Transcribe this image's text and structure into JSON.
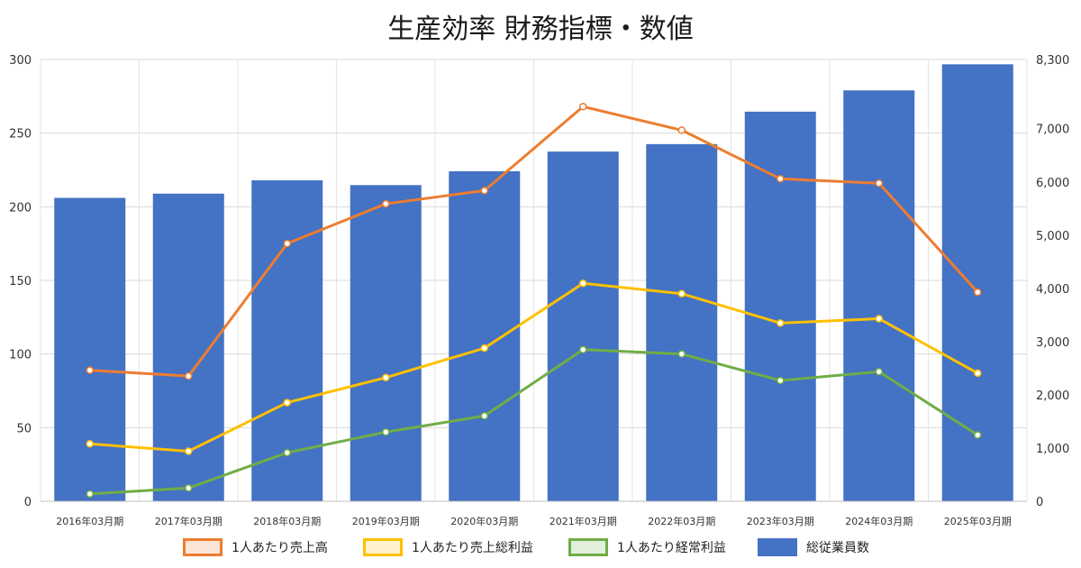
{
  "chart_data": {
    "type": "bar",
    "title": "生産効率 財務指標・数値",
    "categories": [
      "2016年03月期",
      "2017年03月期",
      "2018年03月期",
      "2019年03月期",
      "2020年03月期",
      "2021年03月期",
      "2022年03月期",
      "2023年03月期",
      "2024年03月期",
      "2025年03月期"
    ],
    "y_left": {
      "lim": [
        0,
        300
      ],
      "ticks": [
        "0",
        "50",
        "100",
        "150",
        "200",
        "250",
        "300"
      ]
    },
    "y_right": {
      "lim": [
        0,
        8300
      ],
      "ticks": [
        "0",
        "1,000",
        "2,000",
        "3,000",
        "4,000",
        "5,000",
        "6,000",
        "7,000",
        "8,300"
      ]
    },
    "grid": true,
    "legend_position": "bottom",
    "bar_series": {
      "name": "総従業員数",
      "axis": "right",
      "color": "#4472c4",
      "values": [
        5700,
        5780,
        6030,
        5940,
        6200,
        6570,
        6710,
        7320,
        7720,
        8210
      ]
    },
    "line_series": [
      {
        "name": "1人あたり売上高",
        "axis": "left",
        "color": "#ed7d31",
        "values": [
          89,
          85,
          175,
          202,
          211,
          268,
          252,
          219,
          216,
          142
        ]
      },
      {
        "name": "1人あたり売上総利益",
        "axis": "left",
        "color": "#ffc000",
        "values": [
          39,
          34,
          67,
          84,
          104,
          148,
          141,
          121,
          124,
          87
        ]
      },
      {
        "name": "1人あたり経常利益",
        "axis": "left",
        "color": "#70ad47",
        "values": [
          5,
          9,
          33,
          47,
          58,
          103,
          100,
          82,
          88,
          45
        ]
      }
    ],
    "legend": [
      {
        "label": "1人あたり売上高",
        "color": "#ed7d31",
        "fill": "#fbe5d6",
        "kind": "line"
      },
      {
        "label": "1人あたり売上総利益",
        "color": "#ffc000",
        "fill": "#fff2cc",
        "kind": "line"
      },
      {
        "label": "1人あたり経常利益",
        "color": "#70ad47",
        "fill": "#e2efda",
        "kind": "line"
      },
      {
        "label": "総従業員数",
        "color": "#4472c4",
        "fill": "#4472c4",
        "kind": "bar"
      }
    ]
  }
}
